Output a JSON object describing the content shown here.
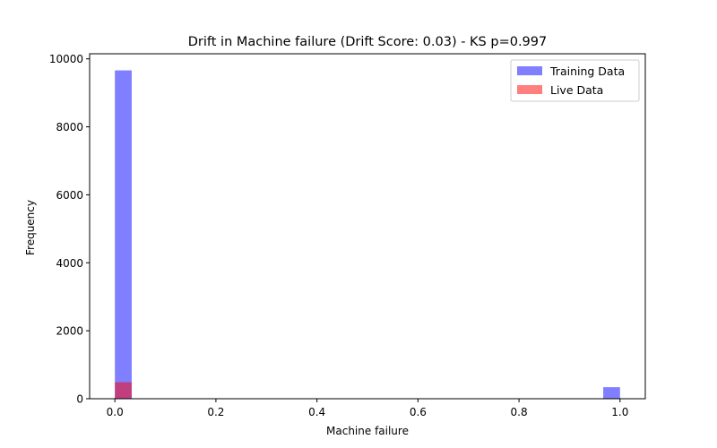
{
  "chart_data": {
    "type": "bar",
    "title": "Drift in Machine failure (Drift Score: 0.03) - KS p=0.997",
    "xlabel": "Machine failure",
    "ylabel": "Frequency",
    "xlim": [
      -0.05,
      1.05
    ],
    "ylim": [
      0,
      10150
    ],
    "xticks": [
      0.0,
      0.2,
      0.4,
      0.6,
      0.8,
      1.0
    ],
    "xtick_labels": [
      "0.0",
      "0.2",
      "0.4",
      "0.6",
      "0.8",
      "1.0"
    ],
    "yticks": [
      0,
      2000,
      4000,
      6000,
      8000,
      10000
    ],
    "ytick_labels": [
      "0",
      "2000",
      "4000",
      "6000",
      "8000",
      "10000"
    ],
    "bin_width": 0.0333,
    "series": [
      {
        "name": "Training Data",
        "color": "#0000ff",
        "opacity": 0.5,
        "bins": [
          {
            "x": 0.0,
            "value": 9661
          },
          {
            "x": 0.9667,
            "value": 339
          }
        ]
      },
      {
        "name": "Live Data",
        "color": "#ff0000",
        "opacity": 0.5,
        "bins": [
          {
            "x": 0.0,
            "value": 485
          },
          {
            "x": 0.9667,
            "value": 15
          }
        ]
      }
    ],
    "legend": {
      "position": "top-right"
    },
    "grid": false
  }
}
